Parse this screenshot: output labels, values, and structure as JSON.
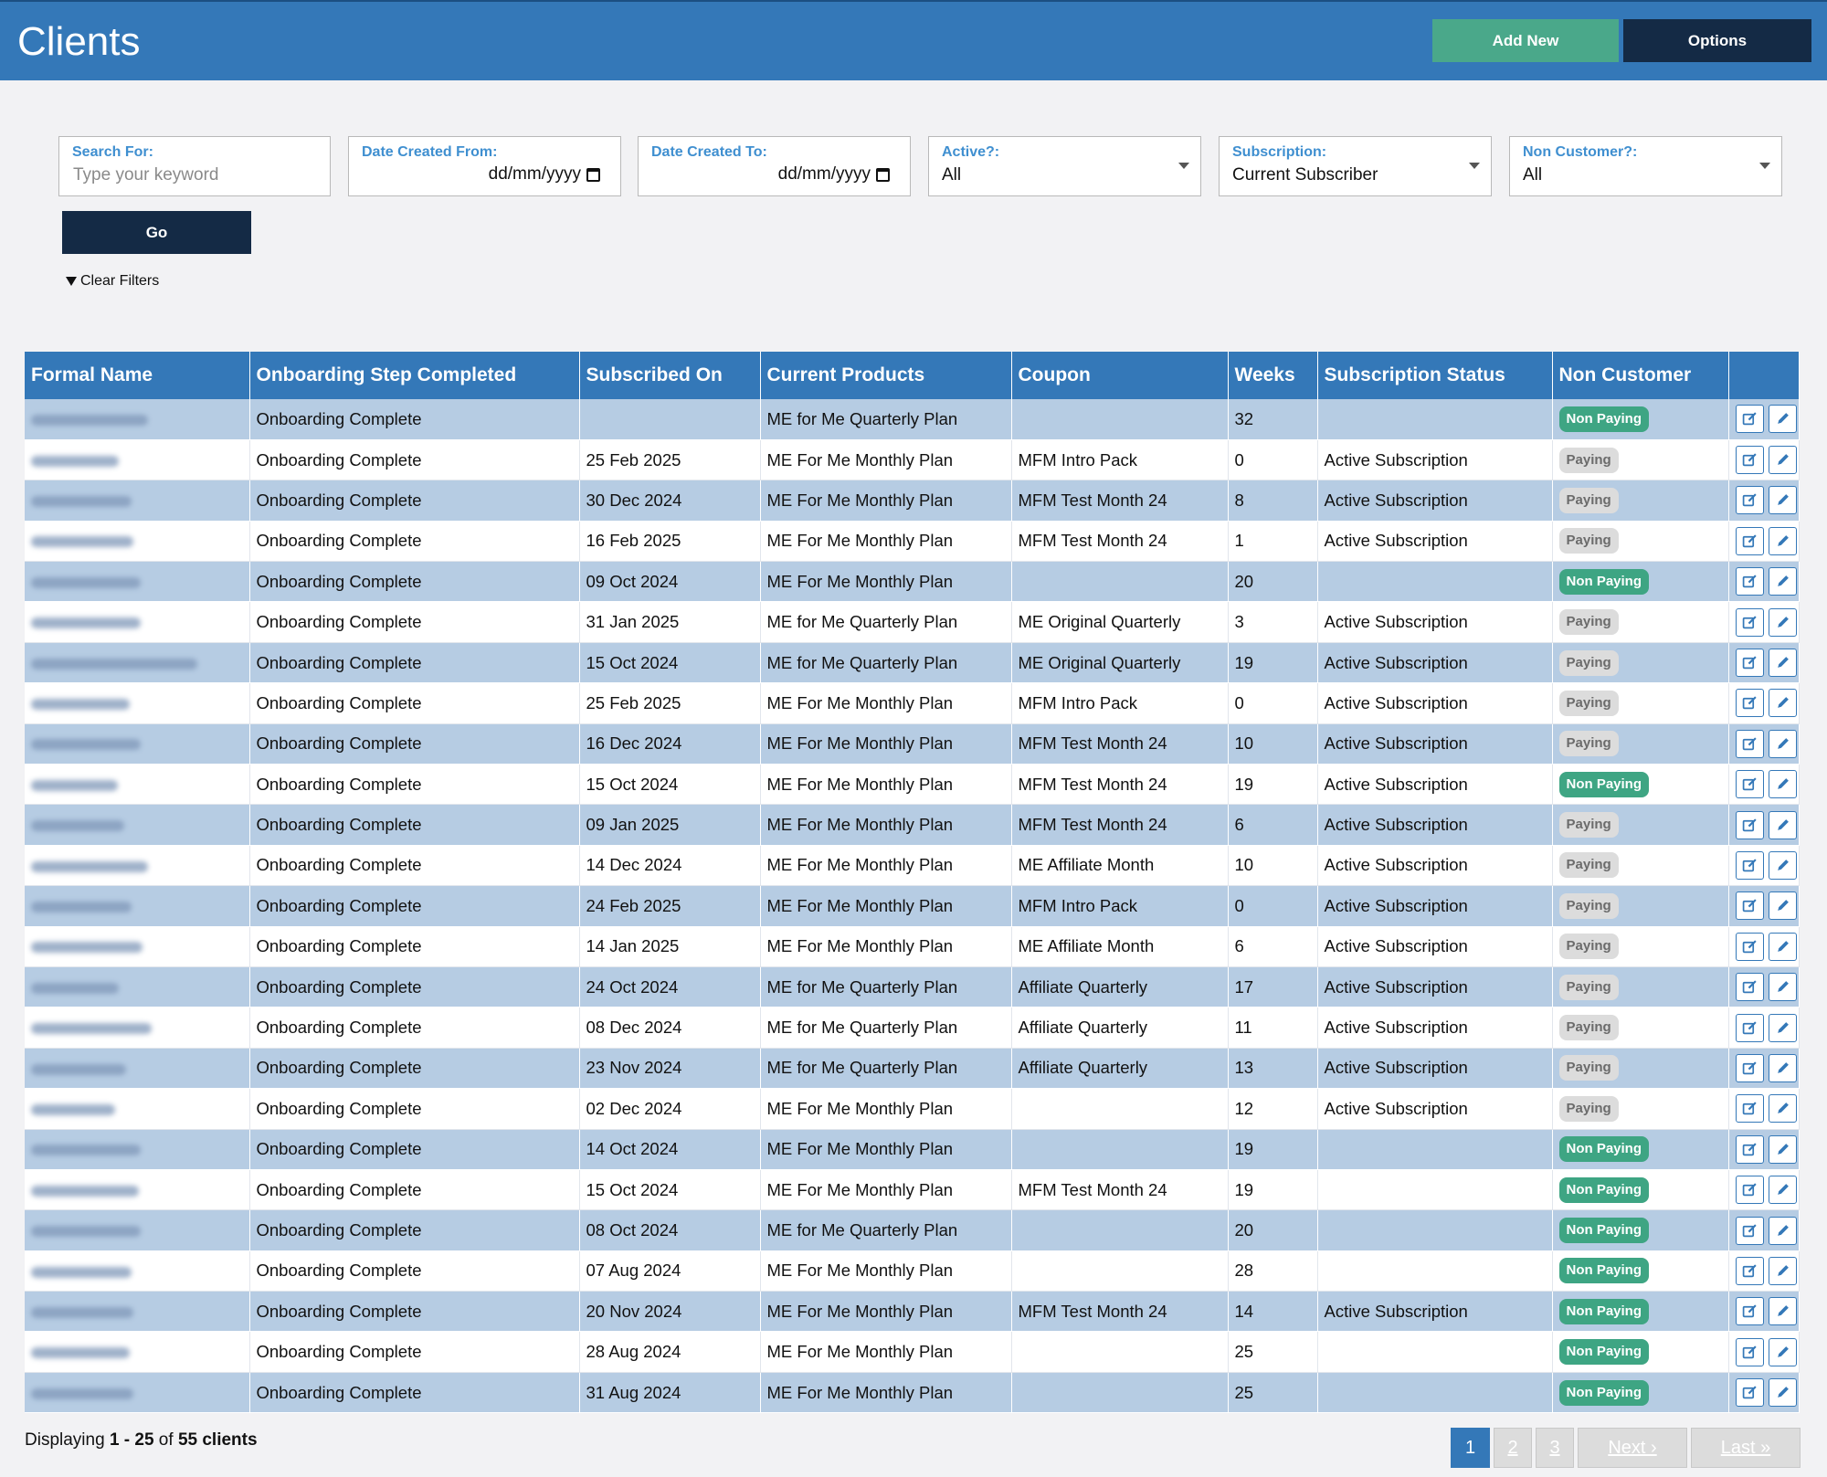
{
  "header": {
    "title": "Clients",
    "add_label": "Add New",
    "options_label": "Options"
  },
  "filters": {
    "search": {
      "label": "Search For:",
      "placeholder": "Type your keyword"
    },
    "date_from": {
      "label": "Date Created From:",
      "value": "dd/mm/yyyy"
    },
    "date_to": {
      "label": "Date Created To:",
      "value": "dd/mm/yyyy"
    },
    "active": {
      "label": "Active?:",
      "value": "All"
    },
    "subscription": {
      "label": "Subscription:",
      "value": "Current Subscriber"
    },
    "non_customer": {
      "label": "Non Customer?:",
      "value": "All"
    },
    "go_label": "Go",
    "clear_label": "Clear Filters"
  },
  "table": {
    "columns": [
      "Formal Name",
      "Onboarding Step Completed",
      "Subscribed On",
      "Current Products",
      "Coupon",
      "Weeks",
      "Subscription Status",
      "Non Customer",
      ""
    ],
    "rows": [
      {
        "step": "Onboarding Complete",
        "subscribed": "",
        "product": "ME for Me Quarterly Plan",
        "coupon": "",
        "weeks": "32",
        "status": "",
        "non_customer": "Non Paying"
      },
      {
        "step": "Onboarding Complete",
        "subscribed": "25 Feb 2025",
        "product": "ME For Me Monthly Plan",
        "coupon": "MFM Intro Pack",
        "weeks": "0",
        "status": "Active Subscription",
        "non_customer": "Paying"
      },
      {
        "step": "Onboarding Complete",
        "subscribed": "30 Dec 2024",
        "product": "ME For Me Monthly Plan",
        "coupon": "MFM Test Month 24",
        "weeks": "8",
        "status": "Active Subscription",
        "non_customer": "Paying"
      },
      {
        "step": "Onboarding Complete",
        "subscribed": "16 Feb 2025",
        "product": "ME For Me Monthly Plan",
        "coupon": "MFM Test Month 24",
        "weeks": "1",
        "status": "Active Subscription",
        "non_customer": "Paying"
      },
      {
        "step": "Onboarding Complete",
        "subscribed": "09 Oct 2024",
        "product": "ME For Me Monthly Plan",
        "coupon": "",
        "weeks": "20",
        "status": "",
        "non_customer": "Non Paying"
      },
      {
        "step": "Onboarding Complete",
        "subscribed": "31 Jan 2025",
        "product": "ME for Me Quarterly Plan",
        "coupon": "ME Original Quarterly",
        "weeks": "3",
        "status": "Active Subscription",
        "non_customer": "Paying"
      },
      {
        "step": "Onboarding Complete",
        "subscribed": "15 Oct 2024",
        "product": "ME for Me Quarterly Plan",
        "coupon": "ME Original Quarterly",
        "weeks": "19",
        "status": "Active Subscription",
        "non_customer": "Paying"
      },
      {
        "step": "Onboarding Complete",
        "subscribed": "25 Feb 2025",
        "product": "ME For Me Monthly Plan",
        "coupon": "MFM Intro Pack",
        "weeks": "0",
        "status": "Active Subscription",
        "non_customer": "Paying"
      },
      {
        "step": "Onboarding Complete",
        "subscribed": "16 Dec 2024",
        "product": "ME For Me Monthly Plan",
        "coupon": "MFM Test Month 24",
        "weeks": "10",
        "status": "Active Subscription",
        "non_customer": "Paying"
      },
      {
        "step": "Onboarding Complete",
        "subscribed": "15 Oct 2024",
        "product": "ME For Me Monthly Plan",
        "coupon": "MFM Test Month 24",
        "weeks": "19",
        "status": "Active Subscription",
        "non_customer": "Non Paying"
      },
      {
        "step": "Onboarding Complete",
        "subscribed": "09 Jan 2025",
        "product": "ME For Me Monthly Plan",
        "coupon": "MFM Test Month 24",
        "weeks": "6",
        "status": "Active Subscription",
        "non_customer": "Paying"
      },
      {
        "step": "Onboarding Complete",
        "subscribed": "14 Dec 2024",
        "product": "ME For Me Monthly Plan",
        "coupon": "ME Affiliate Month",
        "weeks": "10",
        "status": "Active Subscription",
        "non_customer": "Paying"
      },
      {
        "step": "Onboarding Complete",
        "subscribed": "24 Feb 2025",
        "product": "ME For Me Monthly Plan",
        "coupon": "MFM Intro Pack",
        "weeks": "0",
        "status": "Active Subscription",
        "non_customer": "Paying"
      },
      {
        "step": "Onboarding Complete",
        "subscribed": "14 Jan 2025",
        "product": "ME For Me Monthly Plan",
        "coupon": "ME Affiliate Month",
        "weeks": "6",
        "status": "Active Subscription",
        "non_customer": "Paying"
      },
      {
        "step": "Onboarding Complete",
        "subscribed": "24 Oct 2024",
        "product": "ME for Me Quarterly Plan",
        "coupon": "Affiliate Quarterly",
        "weeks": "17",
        "status": "Active Subscription",
        "non_customer": "Paying"
      },
      {
        "step": "Onboarding Complete",
        "subscribed": "08 Dec 2024",
        "product": "ME for Me Quarterly Plan",
        "coupon": "Affiliate Quarterly",
        "weeks": "11",
        "status": "Active Subscription",
        "non_customer": "Paying"
      },
      {
        "step": "Onboarding Complete",
        "subscribed": "23 Nov 2024",
        "product": "ME for Me Quarterly Plan",
        "coupon": "Affiliate Quarterly",
        "weeks": "13",
        "status": "Active Subscription",
        "non_customer": "Paying"
      },
      {
        "step": "Onboarding Complete",
        "subscribed": "02 Dec 2024",
        "product": "ME For Me Monthly Plan",
        "coupon": "",
        "weeks": "12",
        "status": "Active Subscription",
        "non_customer": "Paying"
      },
      {
        "step": "Onboarding Complete",
        "subscribed": "14 Oct 2024",
        "product": "ME For Me Monthly Plan",
        "coupon": "",
        "weeks": "19",
        "status": "",
        "non_customer": "Non Paying"
      },
      {
        "step": "Onboarding Complete",
        "subscribed": "15 Oct 2024",
        "product": "ME For Me Monthly Plan",
        "coupon": "MFM Test Month 24",
        "weeks": "19",
        "status": "",
        "non_customer": "Non Paying"
      },
      {
        "step": "Onboarding Complete",
        "subscribed": "08 Oct 2024",
        "product": "ME for Me Quarterly Plan",
        "coupon": "",
        "weeks": "20",
        "status": "",
        "non_customer": "Non Paying"
      },
      {
        "step": "Onboarding Complete",
        "subscribed": "07 Aug 2024",
        "product": "ME For Me Monthly Plan",
        "coupon": "",
        "weeks": "28",
        "status": "",
        "non_customer": "Non Paying"
      },
      {
        "step": "Onboarding Complete",
        "subscribed": "20 Nov 2024",
        "product": "ME For Me Monthly Plan",
        "coupon": "MFM Test Month 24",
        "weeks": "14",
        "status": "Active Subscription",
        "non_customer": "Non Paying"
      },
      {
        "step": "Onboarding Complete",
        "subscribed": "28 Aug 2024",
        "product": "ME For Me Monthly Plan",
        "coupon": "",
        "weeks": "25",
        "status": "",
        "non_customer": "Non Paying"
      },
      {
        "step": "Onboarding Complete",
        "subscribed": "31 Aug 2024",
        "product": "ME For Me Monthly Plan",
        "coupon": "",
        "weeks": "25",
        "status": "",
        "non_customer": "Non Paying"
      }
    ]
  },
  "footer": {
    "prefix": "Displaying ",
    "range": "1 - 25",
    "of": " of ",
    "total": "55 clients"
  },
  "pagination": {
    "pages": [
      "1",
      "2",
      "3"
    ],
    "next": "Next ›",
    "last": "Last »"
  },
  "icons": {
    "row_action_1": "edit-square-icon",
    "row_action_2": "pencil-icon",
    "clear": "funnel-icon"
  },
  "colors": {
    "header": "#3478b8",
    "navy": "#142a45",
    "green": "#4aa88a",
    "non_paying": "#3ea583",
    "row_alt": "#b6cce3"
  }
}
